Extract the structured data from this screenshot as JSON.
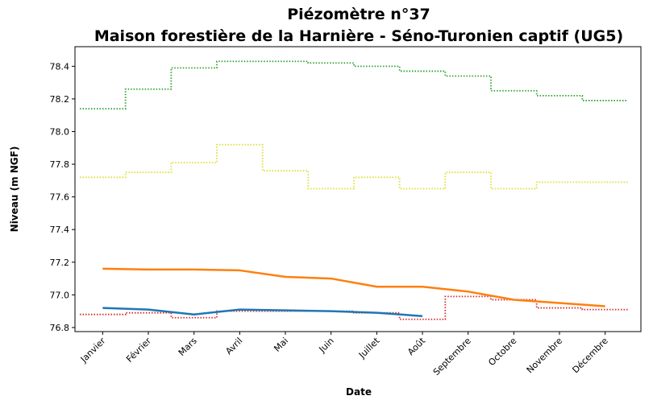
{
  "chart_data": {
    "type": "line",
    "title": [
      "Piézomètre n°37",
      "Maison forestière de la Harnière - Séno-Turonien captif (UG5)"
    ],
    "xlabel": "Date",
    "ylabel": "Niveau (m NGF)",
    "categories": [
      "Janvier",
      "Février",
      "Mars",
      "Avril",
      "Mai",
      "Juin",
      "Juillet",
      "Août",
      "Septembre",
      "Octobre",
      "Novembre",
      "Décembre"
    ],
    "series": [
      {
        "color": "#2ca02c",
        "style": "step-dotted",
        "values": [
          78.14,
          78.26,
          78.39,
          78.43,
          78.43,
          78.42,
          78.4,
          78.37,
          78.34,
          78.25,
          78.22,
          78.19
        ]
      },
      {
        "color": "#dede30",
        "style": "step-dotted",
        "values": [
          77.72,
          77.75,
          77.81,
          77.92,
          77.76,
          77.65,
          77.72,
          77.65,
          77.75,
          77.65,
          77.69,
          77.69
        ]
      },
      {
        "color": "#d62728",
        "style": "step-dotted",
        "values": [
          76.88,
          76.89,
          76.86,
          76.9,
          76.9,
          76.9,
          76.89,
          76.85,
          76.99,
          76.97,
          76.92,
          76.91
        ]
      },
      {
        "color": "#ff7f0e",
        "style": "line",
        "values": [
          77.16,
          77.155,
          77.155,
          77.15,
          77.11,
          77.1,
          77.05,
          77.05,
          77.02,
          76.97,
          76.95,
          76.93
        ]
      },
      {
        "color": "#1f77b4",
        "style": "line",
        "values": [
          76.92,
          76.91,
          76.88,
          76.91,
          76.905,
          76.9,
          76.89,
          76.87,
          null,
          null,
          null,
          null
        ]
      }
    ],
    "ylim": [
      76.775,
      78.52
    ],
    "yticks": [
      76.8,
      {
        "value": 77,
        "label": "77.0"
      },
      77.2,
      77.4,
      77.6,
      77.8,
      {
        "value": 78,
        "label": "78.0"
      },
      78.2,
      78.4
    ]
  }
}
